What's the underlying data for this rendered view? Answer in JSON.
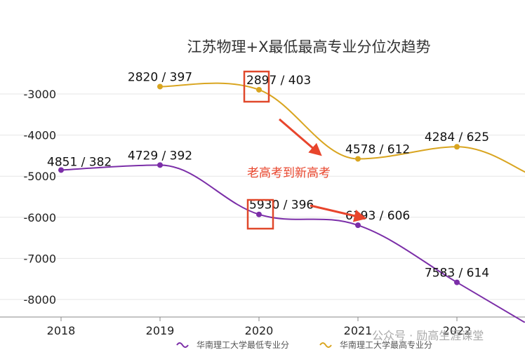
{
  "chart_data": {
    "type": "line",
    "title": "江苏物理+X最低最高专业分位次趋势",
    "x": [
      "2018",
      "2019",
      "2020",
      "2021",
      "2022"
    ],
    "xlabel": "",
    "ylabel": "",
    "ylim": [
      -8400,
      -2400
    ],
    "yticks": [
      -3000,
      -4000,
      -5000,
      -6000,
      -7000,
      -8000
    ],
    "grid": "horizontal",
    "legend_position": "bottom",
    "series": [
      {
        "name": "华南理工大学最低专业分",
        "color": "#7b2ea8",
        "values": [
          -4851,
          -4729,
          -5930,
          -6193,
          -7583
        ],
        "labels": [
          "4851 / 382",
          "4729 / 392",
          "5930 / 396",
          "6193 / 606",
          "7583 / 614"
        ]
      },
      {
        "name": "华南理工大学最高专业分",
        "color": "#d9a520",
        "values": [
          null,
          -2820,
          -2897,
          -4578,
          -4284
        ],
        "labels": [
          "",
          "2820 / 397",
          "2897 / 403",
          "4578 / 612",
          "4284 / 625"
        ]
      }
    ],
    "annotations": [
      {
        "text": "老高考到新高考",
        "color": "#e8452c"
      }
    ]
  },
  "watermark": "公众号 · 励高生涯课堂"
}
